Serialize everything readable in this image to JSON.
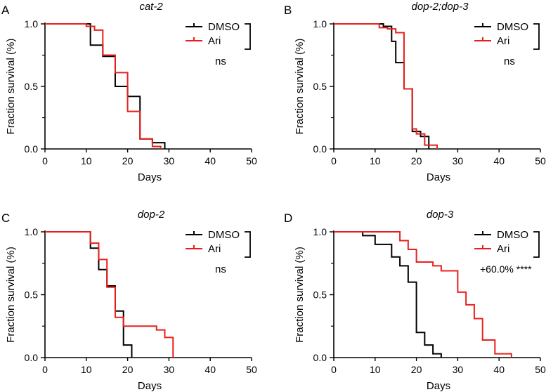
{
  "colors": {
    "DMSO": "#000000",
    "Ari": "#e8201c"
  },
  "chart_data": [
    {
      "type": "line",
      "panel_label": "A",
      "title": "cat-2",
      "xlabel": "Days",
      "ylabel": "Fraction survival (%)",
      "xlim": [
        0,
        50
      ],
      "ylim": [
        0,
        1
      ],
      "xticks": [
        "0",
        "10",
        "20",
        "30",
        "40",
        "50"
      ],
      "yticks": [
        "0.0",
        "0.5",
        "1.0"
      ],
      "series": [
        {
          "name": "DMSO",
          "x": [
            0,
            11,
            14,
            17,
            20,
            23,
            26,
            29
          ],
          "y": [
            1.0,
            0.83,
            0.74,
            0.5,
            0.42,
            0.08,
            0.05,
            0.0
          ]
        },
        {
          "name": "Ari",
          "x": [
            0,
            10,
            12,
            14,
            17,
            20,
            23,
            26,
            28
          ],
          "y": [
            1.0,
            0.98,
            0.95,
            0.75,
            0.61,
            0.3,
            0.08,
            0.02,
            0.0
          ]
        }
      ],
      "annotation": "ns"
    },
    {
      "type": "line",
      "panel_label": "B",
      "title": "dop-2;dop-3",
      "xlabel": "Days",
      "ylabel": "Fraction survival (%)",
      "xlim": [
        0,
        50
      ],
      "ylim": [
        0,
        1
      ],
      "xticks": [
        "0",
        "10",
        "20",
        "30",
        "40",
        "50"
      ],
      "yticks": [
        "0.0",
        "0.5",
        "1.0"
      ],
      "series": [
        {
          "name": "DMSO",
          "x": [
            0,
            12,
            14,
            15,
            17,
            19,
            21,
            23
          ],
          "y": [
            1.0,
            0.98,
            0.86,
            0.69,
            0.48,
            0.14,
            0.1,
            0.0
          ]
        },
        {
          "name": "Ari",
          "x": [
            0,
            11,
            13,
            15,
            17,
            19,
            20,
            22,
            25
          ],
          "y": [
            1.0,
            0.97,
            0.96,
            0.93,
            0.48,
            0.16,
            0.12,
            0.03,
            0.0
          ]
        }
      ],
      "annotation": "ns"
    },
    {
      "type": "line",
      "panel_label": "C",
      "title": "dop-2",
      "xlabel": "Days",
      "ylabel": "Fraction survival (%)",
      "xlim": [
        0,
        50
      ],
      "ylim": [
        0,
        1
      ],
      "xticks": [
        "0",
        "10",
        "20",
        "30",
        "40",
        "50"
      ],
      "yticks": [
        "0.0",
        "0.5",
        "1.0"
      ],
      "series": [
        {
          "name": "DMSO",
          "x": [
            0,
            11,
            13,
            15,
            17,
            19,
            21
          ],
          "y": [
            1.0,
            0.87,
            0.7,
            0.57,
            0.37,
            0.1,
            0.0
          ]
        },
        {
          "name": "Ari",
          "x": [
            0,
            11,
            13,
            15,
            17,
            19,
            25,
            27,
            29,
            31
          ],
          "y": [
            1.0,
            0.91,
            0.78,
            0.56,
            0.32,
            0.25,
            0.25,
            0.22,
            0.16,
            0.0
          ]
        }
      ],
      "annotation": "ns"
    },
    {
      "type": "line",
      "panel_label": "D",
      "title": "dop-3",
      "xlabel": "Days",
      "ylabel": "Fraction survival (%)",
      "xlim": [
        0,
        50
      ],
      "ylim": [
        0,
        1
      ],
      "xticks": [
        "0",
        "10",
        "20",
        "30",
        "40",
        "50"
      ],
      "yticks": [
        "0.0",
        "0.5",
        "1.0"
      ],
      "series": [
        {
          "name": "DMSO",
          "x": [
            0,
            7,
            10,
            14,
            16,
            18,
            20,
            22,
            24,
            26
          ],
          "y": [
            1.0,
            0.97,
            0.9,
            0.8,
            0.73,
            0.6,
            0.2,
            0.1,
            0.03,
            0.0
          ]
        },
        {
          "name": "Ari",
          "x": [
            0,
            16,
            18,
            20,
            24,
            26,
            30,
            32,
            34,
            36,
            39,
            43
          ],
          "y": [
            1.0,
            0.93,
            0.86,
            0.76,
            0.73,
            0.69,
            0.52,
            0.42,
            0.31,
            0.14,
            0.03,
            0.0
          ]
        }
      ],
      "annotation": "+60.0% ****"
    }
  ]
}
